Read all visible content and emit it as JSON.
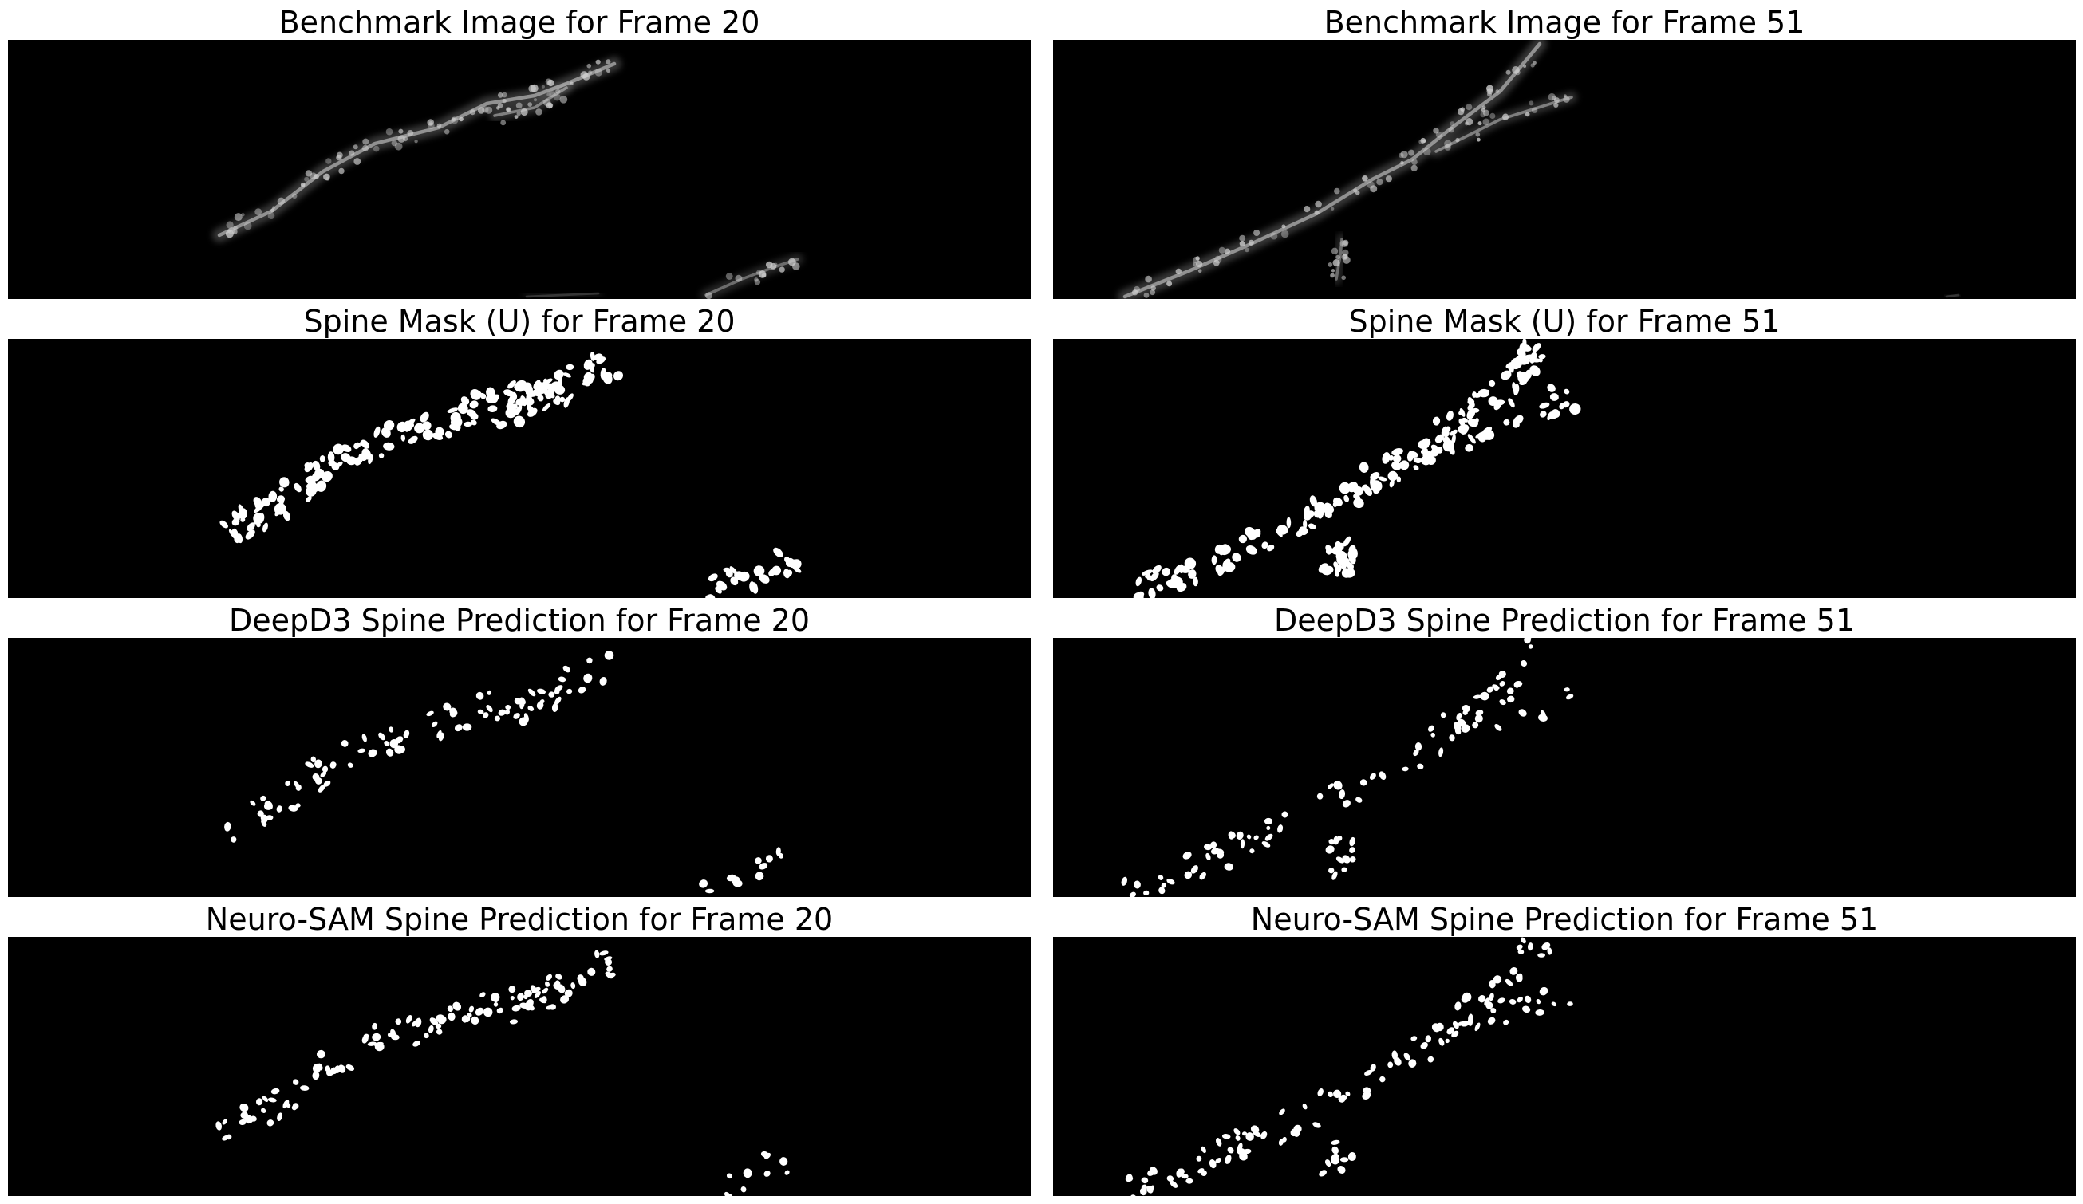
{
  "figure": {
    "background": "#ffffff",
    "image_background": "#000000",
    "foreground": "#ffffff",
    "columns": [
      {
        "panels": [
          {
            "title": "Benchmark Image for Frame 20",
            "kind": "grayscale-micrograph"
          },
          {
            "title": "Spine Mask (U) for Frame 20",
            "kind": "binary-mask"
          },
          {
            "title": "DeepD3 Spine Prediction for Frame 20",
            "kind": "binary-mask"
          },
          {
            "title": "Neuro-SAM Spine Prediction for Frame 20",
            "kind": "binary-mask"
          }
        ]
      },
      {
        "panels": [
          {
            "title": "Benchmark Image for Frame 51",
            "kind": "grayscale-micrograph"
          },
          {
            "title": "Spine Mask (U) for Frame 51",
            "kind": "binary-mask"
          },
          {
            "title": "DeepD3 Spine Prediction for Frame 51",
            "kind": "binary-mask"
          },
          {
            "title": "Neuro-SAM Spine Prediction for Frame 51",
            "kind": "binary-mask"
          }
        ]
      }
    ]
  }
}
